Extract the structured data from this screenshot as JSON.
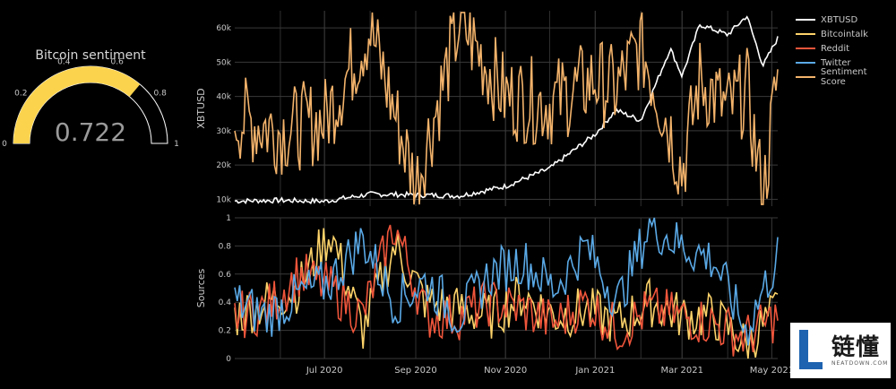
{
  "gauge": {
    "title": "Bitcoin sentiment",
    "value": 0.722,
    "display": "0.722",
    "range": [
      0,
      1
    ],
    "ticks": [
      "0",
      "0.2",
      "0.4",
      "0.6",
      "0.8",
      "1"
    ],
    "bar_color": "#fcd34d",
    "track_color": "#ffffff"
  },
  "legend": {
    "items": [
      {
        "label": "XBTUSD",
        "color": "#ffffff"
      },
      {
        "label": "Bitcointalk",
        "color": "#fdd36a"
      },
      {
        "label": "Reddit",
        "color": "#ef553b"
      },
      {
        "label": "Twitter",
        "color": "#5aa9e6"
      },
      {
        "label": "Sentiment Score",
        "color": "#f3b36b"
      }
    ]
  },
  "x_axis": {
    "ticks": [
      "Jul 2020",
      "Sep 2020",
      "Nov 2020",
      "Jan 2021",
      "Mar 2021",
      "May 2021"
    ]
  },
  "chart_data": [
    {
      "type": "line",
      "ylabel": "XBTUSD",
      "yticks": [
        "10k",
        "20k",
        "30k",
        "40k",
        "50k",
        "60k"
      ],
      "ylim": [
        8000,
        65000
      ],
      "x": [
        "2020-05-01",
        "2020-06-01",
        "2020-07-01",
        "2020-08-01",
        "2020-09-01",
        "2020-10-01",
        "2020-11-01",
        "2020-12-01",
        "2021-01-01",
        "2021-01-15",
        "2021-02-01",
        "2021-02-21",
        "2021-03-01",
        "2021-03-13",
        "2021-04-01",
        "2021-04-14",
        "2021-04-25",
        "2021-05-05"
      ],
      "series": [
        {
          "name": "XBTUSD",
          "color": "#ffffff",
          "values": [
            9500,
            9700,
            9400,
            11500,
            11300,
            11000,
            13800,
            19000,
            29000,
            36000,
            33000,
            54000,
            46000,
            61000,
            58000,
            63500,
            49000,
            57000
          ]
        },
        {
          "name": "Sentiment Score",
          "color": "#f3b36b",
          "values": [
            34000,
            30000,
            33000,
            60000,
            14000,
            62000,
            40000,
            38000,
            45000,
            42000,
            55000,
            30000,
            18000,
            45000,
            36000,
            42000,
            10000,
            47000
          ]
        }
      ]
    },
    {
      "type": "line",
      "ylabel": "Sources",
      "yticks": [
        "0",
        "0.2",
        "0.4",
        "0.6",
        "0.8",
        "1"
      ],
      "ylim": [
        0,
        1
      ],
      "series": [
        {
          "name": "Bitcointalk",
          "color": "#fdd36a",
          "values": [
            0.3,
            0.4,
            0.5,
            0.9,
            0.2,
            0.8,
            0.4,
            0.35,
            0.3,
            0.45,
            0.3,
            0.35,
            0.25,
            0.4,
            0.3,
            0.3,
            0.1,
            0.35
          ]
        },
        {
          "name": "Reddit",
          "color": "#ef553b",
          "values": [
            0.3,
            0.35,
            0.6,
            0.5,
            0.3,
            0.95,
            0.3,
            0.3,
            0.4,
            0.35,
            0.25,
            0.4,
            0.2,
            0.35,
            0.3,
            0.25,
            0.15,
            0.3
          ]
        },
        {
          "name": "Twitter",
          "color": "#5aa9e6",
          "values": [
            0.4,
            0.3,
            0.45,
            0.55,
            0.85,
            0.4,
            0.55,
            0.3,
            0.6,
            0.7,
            0.5,
            0.8,
            0.4,
            0.95,
            0.8,
            0.7,
            0.2,
            0.72
          ]
        }
      ]
    }
  ]
}
